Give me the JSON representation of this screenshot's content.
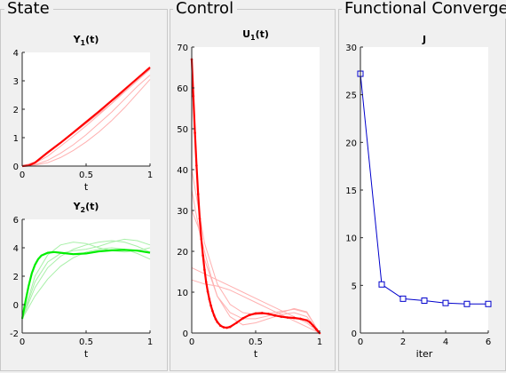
{
  "panels": {
    "state": {
      "title": "State"
    },
    "control": {
      "title": "Control"
    },
    "convergence": {
      "title": "Functional Converge"
    }
  },
  "chart_data": [
    {
      "id": "y1",
      "type": "line",
      "title_main": "Y",
      "title_sub": "1",
      "title_tail": "(t)",
      "xlabel": "t",
      "xlim": [
        0,
        1
      ],
      "ylim": [
        0,
        4
      ],
      "xticks": [
        "0",
        "0.5",
        "1"
      ],
      "xtick_values": [
        0,
        0.5,
        1
      ],
      "yticks": [
        "0",
        "1",
        "2",
        "3",
        "4"
      ],
      "ytick_values": [
        0,
        1,
        2,
        3,
        4
      ],
      "color_main": "#ff0000",
      "color_faint": "#ffb0b0",
      "series_main": {
        "x": [
          0,
          0.05,
          0.1,
          0.15,
          0.2,
          0.3,
          0.4,
          0.5,
          0.6,
          0.7,
          0.8,
          0.9,
          1.0
        ],
        "y": [
          0,
          0.02,
          0.12,
          0.3,
          0.48,
          0.82,
          1.18,
          1.55,
          1.92,
          2.3,
          2.69,
          3.08,
          3.47
        ]
      },
      "series_faint": [
        {
          "x": [
            0,
            0.1,
            0.2,
            0.3,
            0.4,
            0.5,
            0.6,
            0.7,
            0.8,
            0.9,
            1.0
          ],
          "y": [
            0,
            0.05,
            0.2,
            0.45,
            0.75,
            1.1,
            1.5,
            1.9,
            2.35,
            2.8,
            3.2
          ]
        },
        {
          "x": [
            0,
            0.1,
            0.2,
            0.3,
            0.4,
            0.5,
            0.6,
            0.7,
            0.8,
            0.9,
            1.0
          ],
          "y": [
            0,
            0.15,
            0.45,
            0.8,
            1.15,
            1.5,
            1.85,
            2.2,
            2.6,
            3.0,
            3.4
          ]
        },
        {
          "x": [
            0,
            0.1,
            0.2,
            0.3,
            0.4,
            0.5,
            0.6,
            0.7,
            0.8,
            0.9,
            1.0
          ],
          "y": [
            0,
            0.03,
            0.12,
            0.3,
            0.55,
            0.85,
            1.2,
            1.6,
            2.05,
            2.55,
            3.05
          ]
        },
        {
          "x": [
            0,
            0.1,
            0.2,
            0.3,
            0.4,
            0.5,
            0.6,
            0.7,
            0.8,
            0.9,
            1.0
          ],
          "y": [
            0,
            0.1,
            0.35,
            0.7,
            1.05,
            1.42,
            1.8,
            2.2,
            2.65,
            3.1,
            3.5
          ]
        }
      ]
    },
    {
      "id": "y2",
      "type": "line",
      "title_main": "Y",
      "title_sub": "2",
      "title_tail": "(t)",
      "xlabel": "t",
      "xlim": [
        0,
        1
      ],
      "ylim": [
        -2,
        6
      ],
      "xticks": [
        "0",
        "0.5",
        "1"
      ],
      "xtick_values": [
        0,
        0.5,
        1
      ],
      "yticks": [
        "-2",
        "0",
        "2",
        "4",
        "6"
      ],
      "ytick_values": [
        -2,
        0,
        2,
        4,
        6
      ],
      "color_main": "#00ee00",
      "color_faint": "#a8f0a8",
      "series_main": {
        "x": [
          0,
          0.025,
          0.05,
          0.075,
          0.1,
          0.125,
          0.15,
          0.2,
          0.25,
          0.3,
          0.4,
          0.5,
          0.6,
          0.7,
          0.8,
          0.9,
          1.0
        ],
        "y": [
          -1.0,
          0.2,
          1.3,
          2.2,
          2.8,
          3.2,
          3.45,
          3.65,
          3.7,
          3.65,
          3.55,
          3.6,
          3.75,
          3.82,
          3.85,
          3.8,
          3.65
        ]
      },
      "series_faint": [
        {
          "x": [
            0,
            0.1,
            0.2,
            0.3,
            0.4,
            0.5,
            0.6,
            0.7,
            0.8,
            0.9,
            1.0
          ],
          "y": [
            -1.0,
            1.2,
            2.6,
            3.4,
            3.9,
            4.2,
            4.4,
            4.5,
            4.4,
            4.1,
            3.7
          ]
        },
        {
          "x": [
            0,
            0.1,
            0.2,
            0.3,
            0.4,
            0.5,
            0.6,
            0.7,
            0.8,
            0.9,
            1.0
          ],
          "y": [
            -1.0,
            2.0,
            3.5,
            4.2,
            4.4,
            4.3,
            4.0,
            3.8,
            3.7,
            3.8,
            4.0
          ]
        },
        {
          "x": [
            0,
            0.1,
            0.2,
            0.3,
            0.4,
            0.5,
            0.6,
            0.7,
            0.8,
            0.9,
            1.0
          ],
          "y": [
            -1.0,
            0.6,
            1.8,
            2.7,
            3.3,
            3.7,
            3.9,
            4.0,
            3.9,
            3.6,
            3.2
          ]
        },
        {
          "x": [
            0,
            0.1,
            0.2,
            0.3,
            0.4,
            0.5,
            0.6,
            0.7,
            0.8,
            0.9,
            1.0
          ],
          "y": [
            -1.0,
            1.6,
            3.0,
            3.6,
            3.8,
            3.9,
            4.1,
            4.4,
            4.6,
            4.5,
            4.2
          ]
        }
      ]
    },
    {
      "id": "u1",
      "type": "line",
      "title_main": "U",
      "title_sub": "1",
      "title_tail": "(t)",
      "xlabel": "t",
      "xlim": [
        0,
        1
      ],
      "ylim": [
        0,
        70
      ],
      "xticks": [
        "0",
        "0.5",
        "1"
      ],
      "xtick_values": [
        0,
        0.5,
        1
      ],
      "yticks": [
        "0",
        "10",
        "20",
        "30",
        "40",
        "50",
        "60",
        "70"
      ],
      "ytick_values": [
        0,
        10,
        20,
        30,
        40,
        50,
        60,
        70
      ],
      "color_main": "#ff0000",
      "color_faint": "#ffb0b0",
      "markers": true,
      "series_main": {
        "x": [
          0,
          0.0125,
          0.025,
          0.0375,
          0.05,
          0.0625,
          0.075,
          0.0875,
          0.1,
          0.1125,
          0.125,
          0.1375,
          0.15,
          0.1625,
          0.175,
          0.1875,
          0.2,
          0.225,
          0.25,
          0.275,
          0.3,
          0.35,
          0.4,
          0.45,
          0.5,
          0.55,
          0.6,
          0.65,
          0.7,
          0.75,
          0.8,
          0.85,
          0.9,
          0.925,
          0.95,
          0.975,
          1.0
        ],
        "y": [
          67,
          58,
          49,
          41,
          34,
          28,
          23,
          19,
          15.5,
          12.5,
          10.2,
          8.3,
          6.7,
          5.4,
          4.3,
          3.4,
          2.7,
          1.8,
          1.4,
          1.3,
          1.5,
          2.5,
          3.6,
          4.4,
          4.8,
          4.9,
          4.7,
          4.3,
          4.0,
          3.8,
          3.7,
          3.5,
          3.1,
          2.6,
          1.8,
          0.9,
          0
        ]
      },
      "series_faint": [
        {
          "x": [
            0,
            0.1,
            0.2,
            0.3,
            0.4,
            0.5,
            0.6,
            0.7,
            0.8,
            0.9,
            1.0
          ],
          "y": [
            16,
            14.5,
            13,
            11.5,
            10,
            8.5,
            7,
            5.5,
            4,
            2.5,
            0
          ]
        },
        {
          "x": [
            0,
            0.1,
            0.2,
            0.3,
            0.4,
            0.5,
            0.6,
            0.7,
            0.8,
            0.9,
            1.0
          ],
          "y": [
            40,
            22,
            12,
            7,
            5,
            4.5,
            4.8,
            5.3,
            5.8,
            5.0,
            0
          ]
        },
        {
          "x": [
            0,
            0.05,
            0.1,
            0.15,
            0.2,
            0.3,
            0.4,
            0.5,
            0.6,
            0.7,
            0.8,
            0.9,
            1.0
          ],
          "y": [
            30,
            26,
            20,
            14,
            9,
            4,
            2,
            2.5,
            3.5,
            4.5,
            5,
            4,
            0
          ]
        },
        {
          "x": [
            0,
            0.1,
            0.2,
            0.3,
            0.4,
            0.5,
            0.6,
            0.7,
            0.8,
            0.9,
            1.0
          ],
          "y": [
            35,
            18,
            9,
            5,
            3.5,
            3.5,
            4.2,
            5.0,
            6.0,
            5.2,
            0
          ]
        },
        {
          "x": [
            0,
            0.1,
            0.2,
            0.3,
            0.4,
            0.5,
            0.6,
            0.7,
            0.8,
            0.9,
            1.0
          ],
          "y": [
            13,
            12,
            11.5,
            10.5,
            9,
            7.5,
            6,
            4.5,
            3,
            1.5,
            0
          ]
        }
      ]
    },
    {
      "id": "j",
      "type": "line",
      "title_main": "J",
      "title_sub": "",
      "title_tail": "",
      "xlabel": "iter",
      "xlim": [
        0,
        6
      ],
      "ylim": [
        0,
        30
      ],
      "xticks": [
        "0",
        "2",
        "4",
        "6"
      ],
      "xtick_values": [
        0,
        2,
        4,
        6
      ],
      "yticks": [
        "0",
        "5",
        "10",
        "15",
        "20",
        "25",
        "30"
      ],
      "ytick_values": [
        0,
        5,
        10,
        15,
        20,
        25,
        30
      ],
      "color_main": "#0000cc",
      "square_markers": true,
      "series_main": {
        "x": [
          0,
          1,
          2,
          3,
          4,
          5,
          6
        ],
        "y": [
          27.2,
          5.1,
          3.6,
          3.4,
          3.15,
          3.05,
          3.05
        ]
      },
      "series_faint": []
    }
  ]
}
